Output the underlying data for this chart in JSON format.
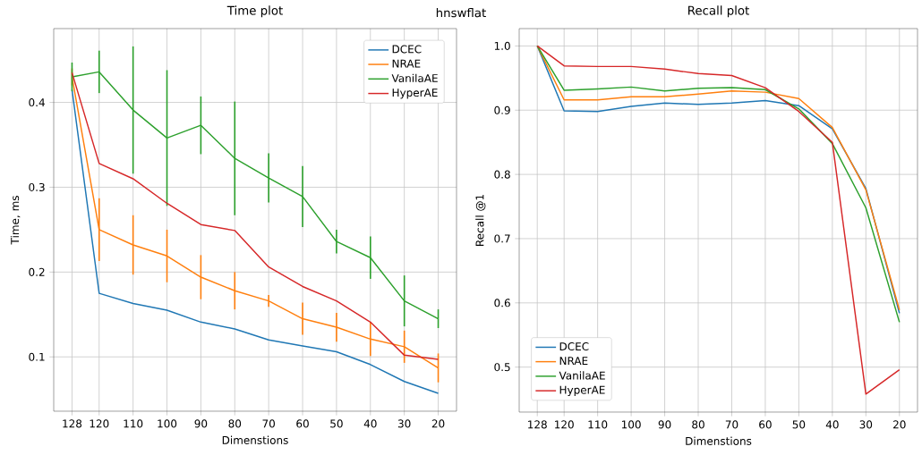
{
  "chart_data": [
    {
      "type": "line",
      "title": "Time plot",
      "xlabel": "Dimenstions",
      "ylabel": "Time, ms",
      "annotations": [
        "hnswflat"
      ],
      "x": [
        128,
        120,
        110,
        100,
        90,
        80,
        70,
        60,
        50,
        40,
        30,
        20
      ],
      "xlim": [
        133.4,
        14.6
      ],
      "xticks": [
        128,
        120,
        110,
        100,
        90,
        80,
        70,
        60,
        50,
        40,
        30,
        20
      ],
      "ylim": [
        0.036,
        0.487
      ],
      "yticks": [
        0.1,
        0.2,
        0.3,
        0.4
      ],
      "grid": true,
      "legend": "top right",
      "marker": "none",
      "series": [
        {
          "name": "DCEC",
          "color": "#1f77b4",
          "values": [
            0.415,
            0.175,
            0.163,
            0.155,
            0.141,
            0.133,
            0.12,
            0.113,
            0.106,
            0.091,
            0.071,
            0.057
          ]
        },
        {
          "name": "NRAE",
          "color": "#ff7f0e",
          "values": [
            0.43,
            0.25,
            0.232,
            0.219,
            0.194,
            0.178,
            0.166,
            0.145,
            0.135,
            0.121,
            0.112,
            0.087
          ],
          "errors": [
            0.01,
            0.037,
            0.035,
            0.031,
            0.026,
            0.022,
            0.007,
            0.019,
            0.017,
            0.02,
            0.019,
            0.017
          ]
        },
        {
          "name": "VanilaAE",
          "color": "#2ca02c",
          "values": [
            0.43,
            0.436,
            0.391,
            0.358,
            0.373,
            0.334,
            0.311,
            0.289,
            0.236,
            0.217,
            0.166,
            0.145
          ],
          "errors": [
            0.017,
            0.025,
            0.075,
            0.08,
            0.034,
            0.067,
            0.029,
            0.036,
            0.014,
            0.025,
            0.03,
            0.011
          ]
        },
        {
          "name": "HyperAE",
          "color": "#d62728",
          "values": [
            0.435,
            0.328,
            0.31,
            0.281,
            0.256,
            0.249,
            0.206,
            0.183,
            0.166,
            0.141,
            0.102,
            0.097
          ]
        }
      ]
    },
    {
      "type": "line",
      "title": "Recall plot",
      "xlabel": "Dimenstions",
      "ylabel": "Recall @1",
      "x": [
        128,
        120,
        110,
        100,
        90,
        80,
        70,
        60,
        50,
        40,
        30,
        20
      ],
      "xlim": [
        133.4,
        14.6
      ],
      "xticks": [
        128,
        120,
        110,
        100,
        90,
        80,
        70,
        60,
        50,
        40,
        30,
        20
      ],
      "ylim": [
        0.43,
        1.027
      ],
      "yticks": [
        0.5,
        0.6,
        0.7,
        0.8,
        0.9,
        {
          "value": 1,
          "label": "1.0"
        }
      ],
      "grid": true,
      "legend": "bottom left",
      "marker": "none",
      "series": [
        {
          "name": "DCEC",
          "color": "#1f77b4",
          "values": [
            1.0,
            0.899,
            0.898,
            0.906,
            0.911,
            0.909,
            0.911,
            0.915,
            0.907,
            0.871,
            0.778,
            0.584
          ]
        },
        {
          "name": "NRAE",
          "color": "#ff7f0e",
          "values": [
            1.0,
            0.916,
            0.916,
            0.921,
            0.921,
            0.925,
            0.93,
            0.928,
            0.918,
            0.873,
            0.776,
            0.589
          ]
        },
        {
          "name": "VanilaAE",
          "color": "#2ca02c",
          "values": [
            1.0,
            0.931,
            0.933,
            0.936,
            0.93,
            0.934,
            0.935,
            0.932,
            0.902,
            0.848,
            0.748,
            0.57
          ]
        },
        {
          "name": "HyperAE",
          "color": "#d62728",
          "values": [
            1.0,
            0.969,
            0.968,
            0.968,
            0.964,
            0.957,
            0.954,
            0.935,
            0.898,
            0.85,
            0.458,
            0.496
          ]
        }
      ]
    }
  ]
}
